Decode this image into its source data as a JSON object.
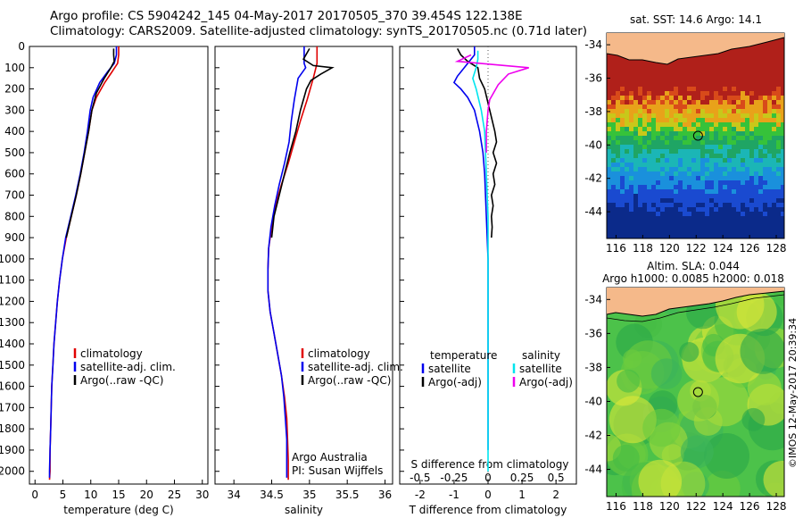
{
  "header": {
    "title_line1": "Argo profile: CS 5904242_145 04-May-2017 20170505_370 39.454S 122.138E",
    "title_line2": "Climatology: CARS2009. Satellite-adjusted climatology: synTS_20170505.nc (0.71d later)"
  },
  "colors": {
    "climatology": "#e00000",
    "satellite": "#0000ee",
    "argo": "#000000",
    "sal_satellite": "#00e5ee",
    "sal_argo": "#ee00ee",
    "land": "#f5b98a"
  },
  "chart_data": [
    {
      "type": "line",
      "id": "temperature",
      "xlabel": "temperature (deg C)",
      "ylabel": "",
      "xlim": [
        -1,
        31
      ],
      "ylim": [
        2060,
        0
      ],
      "xticks": [
        "0",
        "5",
        "10",
        "15",
        "20",
        "25",
        "30"
      ],
      "yticks": [
        "0",
        "100",
        "200",
        "300",
        "400",
        "500",
        "600",
        "700",
        "800",
        "900",
        "1000",
        "1100",
        "1200",
        "1300",
        "1400",
        "1500",
        "1600",
        "1700",
        "1800",
        "1900",
        "2000"
      ],
      "legend": [
        "climatology",
        "satellite-adj. clim.",
        "Argo(..raw -QC)"
      ],
      "legend_position": "center",
      "series": [
        {
          "name": "climatology",
          "color": "#e00000",
          "points": [
            [
              15.0,
              0
            ],
            [
              15.0,
              40
            ],
            [
              14.8,
              80
            ],
            [
              13.8,
              120
            ],
            [
              12.5,
              170
            ],
            [
              11.0,
              240
            ],
            [
              10.2,
              300
            ],
            [
              9.6,
              400
            ],
            [
              8.9,
              500
            ],
            [
              8.2,
              600
            ],
            [
              7.4,
              700
            ],
            [
              6.5,
              800
            ],
            [
              5.6,
              900
            ],
            [
              4.9,
              1000
            ],
            [
              4.4,
              1100
            ],
            [
              4.0,
              1200
            ],
            [
              3.7,
              1300
            ],
            [
              3.4,
              1400
            ],
            [
              3.2,
              1500
            ],
            [
              3.0,
              1600
            ],
            [
              2.9,
              1700
            ],
            [
              2.8,
              1800
            ],
            [
              2.7,
              1900
            ],
            [
              2.7,
              2000
            ],
            [
              2.6,
              2040
            ]
          ]
        },
        {
          "name": "satellite-adj. clim.",
          "color": "#0000ee",
          "points": [
            [
              14.6,
              0
            ],
            [
              14.6,
              40
            ],
            [
              14.2,
              80
            ],
            [
              13.0,
              120
            ],
            [
              11.6,
              170
            ],
            [
              10.4,
              240
            ],
            [
              9.9,
              300
            ],
            [
              9.4,
              400
            ],
            [
              8.8,
              500
            ],
            [
              8.1,
              600
            ],
            [
              7.3,
              700
            ],
            [
              6.4,
              800
            ],
            [
              5.5,
              900
            ],
            [
              4.9,
              1000
            ],
            [
              4.4,
              1100
            ],
            [
              4.0,
              1200
            ],
            [
              3.7,
              1300
            ],
            [
              3.4,
              1400
            ],
            [
              3.2,
              1500
            ],
            [
              3.0,
              1600
            ],
            [
              2.9,
              1700
            ],
            [
              2.8,
              1800
            ],
            [
              2.7,
              1900
            ],
            [
              2.6,
              2000
            ],
            [
              2.6,
              2030
            ]
          ]
        },
        {
          "name": "Argo(..raw -QC)",
          "color": "#000000",
          "points": [
            [
              14.1,
              10
            ],
            [
              14.1,
              40
            ],
            [
              14.2,
              70
            ],
            [
              13.6,
              100
            ],
            [
              12.4,
              150
            ],
            [
              11.0,
              220
            ],
            [
              10.2,
              300
            ],
            [
              9.6,
              400
            ],
            [
              8.9,
              500
            ],
            [
              8.2,
              600
            ],
            [
              7.4,
              700
            ],
            [
              6.5,
              800
            ],
            [
              5.6,
              900
            ]
          ]
        }
      ]
    },
    {
      "type": "line",
      "id": "salinity",
      "xlabel": "salinity",
      "xlim": [
        33.75,
        36.1
      ],
      "ylim": [
        2060,
        0
      ],
      "xticks": [
        "34",
        "34.5",
        "35",
        "35.5",
        "36"
      ],
      "legend": [
        "climatology",
        "satellite-adj. clim.",
        "Argo(..raw -QC)"
      ],
      "annotation": [
        "Argo Australia",
        "PI: Susan Wijffels"
      ],
      "series": [
        {
          "name": "climatology",
          "color": "#e00000",
          "points": [
            [
              35.1,
              0
            ],
            [
              35.1,
              80
            ],
            [
              35.05,
              150
            ],
            [
              34.97,
              250
            ],
            [
              34.88,
              350
            ],
            [
              34.8,
              450
            ],
            [
              34.72,
              550
            ],
            [
              34.63,
              650
            ],
            [
              34.55,
              750
            ],
            [
              34.5,
              850
            ],
            [
              34.46,
              950
            ],
            [
              34.45,
              1050
            ],
            [
              34.45,
              1150
            ],
            [
              34.48,
              1250
            ],
            [
              34.53,
              1350
            ],
            [
              34.58,
              1450
            ],
            [
              34.63,
              1550
            ],
            [
              34.67,
              1650
            ],
            [
              34.7,
              1750
            ],
            [
              34.71,
              1850
            ],
            [
              34.72,
              1950
            ],
            [
              34.72,
              2040
            ]
          ]
        },
        {
          "name": "satellite-adj. clim.",
          "color": "#0000ee",
          "points": [
            [
              34.93,
              0
            ],
            [
              34.93,
              80
            ],
            [
              34.95,
              100
            ],
            [
              34.85,
              150
            ],
            [
              34.8,
              250
            ],
            [
              34.76,
              350
            ],
            [
              34.73,
              450
            ],
            [
              34.67,
              550
            ],
            [
              34.6,
              650
            ],
            [
              34.54,
              750
            ],
            [
              34.49,
              850
            ],
            [
              34.46,
              950
            ],
            [
              34.45,
              1050
            ],
            [
              34.45,
              1150
            ],
            [
              34.48,
              1250
            ],
            [
              34.53,
              1350
            ],
            [
              34.58,
              1450
            ],
            [
              34.63,
              1550
            ],
            [
              34.66,
              1650
            ],
            [
              34.68,
              1750
            ],
            [
              34.7,
              1850
            ],
            [
              34.7,
              1950
            ],
            [
              34.7,
              2030
            ]
          ]
        },
        {
          "name": "Argo(..raw -QC)",
          "color": "#000000",
          "points": [
            [
              35.0,
              10
            ],
            [
              34.92,
              60
            ],
            [
              35.05,
              90
            ],
            [
              35.3,
              100
            ],
            [
              35.15,
              130
            ],
            [
              35.02,
              160
            ],
            [
              34.96,
              200
            ],
            [
              34.92,
              250
            ],
            [
              34.88,
              300
            ],
            [
              34.82,
              400
            ],
            [
              34.74,
              500
            ],
            [
              34.67,
              600
            ],
            [
              34.6,
              700
            ],
            [
              34.53,
              800
            ],
            [
              34.5,
              900
            ]
          ]
        }
      ]
    },
    {
      "type": "line",
      "id": "difference",
      "xlabel": "T difference from climatology",
      "xlabel_top": "S difference from climatology",
      "xlim": [
        -2.6,
        2.6
      ],
      "ylim": [
        2060,
        0
      ],
      "xticks": [
        "-2",
        "-1",
        "0",
        "1",
        "2"
      ],
      "xticks_top": [
        "-0.5",
        "-0.25",
        "0",
        "0.25",
        "0.5"
      ],
      "legend_temperature": {
        "title": "temperature",
        "items": [
          "satellite",
          "Argo(-adj)"
        ]
      },
      "legend_salinity": {
        "title": "salinity",
        "items": [
          "satellite",
          "Argo(-adj)"
        ]
      },
      "series": [
        {
          "name": "satellite",
          "group": "temperature",
          "color": "#0000ee",
          "points": [
            [
              -0.4,
              0
            ],
            [
              -0.4,
              40
            ],
            [
              -0.6,
              80
            ],
            [
              -0.9,
              140
            ],
            [
              -1.0,
              170
            ],
            [
              -0.8,
              200
            ],
            [
              -0.6,
              240
            ],
            [
              -0.4,
              300
            ],
            [
              -0.25,
              400
            ],
            [
              -0.15,
              500
            ],
            [
              -0.1,
              600
            ],
            [
              -0.05,
              800
            ],
            [
              0,
              1000
            ],
            [
              0,
              1500
            ],
            [
              0,
              1900
            ]
          ]
        },
        {
          "name": "Argo(-adj)",
          "group": "temperature",
          "color": "#000000",
          "points": [
            [
              -0.9,
              10
            ],
            [
              -0.8,
              40
            ],
            [
              -0.6,
              70
            ],
            [
              -0.3,
              100
            ],
            [
              -0.25,
              150
            ],
            [
              -0.1,
              200
            ],
            [
              0.05,
              300
            ],
            [
              0.2,
              400
            ],
            [
              0.25,
              450
            ],
            [
              0.15,
              500
            ],
            [
              0.25,
              550
            ],
            [
              0.15,
              600
            ],
            [
              0.2,
              650
            ],
            [
              0.1,
              700
            ],
            [
              0.15,
              750
            ],
            [
              0.1,
              800
            ],
            [
              0.12,
              850
            ],
            [
              0.1,
              900
            ]
          ]
        },
        {
          "name": "satellite",
          "group": "salinity",
          "color": "#00e5ee",
          "points": [
            [
              -0.3,
              20
            ],
            [
              -0.3,
              60
            ],
            [
              -0.35,
              100
            ],
            [
              -0.45,
              150
            ],
            [
              -0.35,
              200
            ],
            [
              -0.2,
              300
            ],
            [
              -0.1,
              400
            ],
            [
              -0.05,
              600
            ],
            [
              0,
              800
            ],
            [
              0,
              1000
            ],
            [
              0,
              1500
            ],
            [
              0,
              2000
            ]
          ]
        },
        {
          "name": "Argo(-adj)",
          "group": "salinity",
          "color": "#ee00ee",
          "points": [
            [
              -0.5,
              40
            ],
            [
              -0.9,
              70
            ],
            [
              0.5,
              90
            ],
            [
              1.2,
              100
            ],
            [
              0.6,
              130
            ],
            [
              0.3,
              180
            ],
            [
              0.05,
              250
            ],
            [
              0,
              300
            ],
            [
              -0.05,
              400
            ],
            [
              -0.05,
              500
            ]
          ]
        }
      ]
    }
  ],
  "maps": {
    "sst": {
      "title": "sat. SST: 14.6 Argo: 14.1",
      "yticks": [
        "-34",
        "-36",
        "-38",
        "-40",
        "-42",
        "-44"
      ],
      "xticks": [
        "116",
        "118",
        "120",
        "122",
        "124",
        "126",
        "128"
      ],
      "marker": {
        "lon": 122.14,
        "lat": -39.45
      }
    },
    "sla": {
      "title_line1": "Altim. SLA: 0.044",
      "title_line2": "Argo h1000: 0.0085 h2000: 0.018",
      "yticks": [
        "-34",
        "-36",
        "-38",
        "-40",
        "-42",
        "-44"
      ],
      "xticks": [
        "116",
        "118",
        "120",
        "122",
        "124",
        "126",
        "128"
      ],
      "marker": {
        "lon": 122.14,
        "lat": -39.45
      }
    },
    "footer": "©IMOS 12-May-2017 20:39:34"
  }
}
